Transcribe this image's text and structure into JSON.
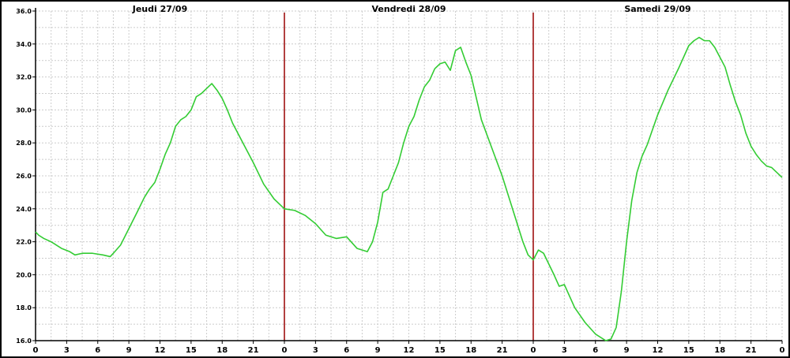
{
  "chart_data": {
    "type": "line",
    "title": "",
    "xlabel": "",
    "ylabel": "",
    "ylim": [
      16.0,
      36.0
    ],
    "yticks": [
      "16.0",
      "18.0",
      "20.0",
      "22.0",
      "24.0",
      "26.0",
      "28.0",
      "30.0",
      "32.0",
      "34.0",
      "36.0"
    ],
    "xlim_hours": [
      0,
      72
    ],
    "xticks": [
      "0",
      "3",
      "6",
      "9",
      "12",
      "15",
      "18",
      "21",
      "0",
      "3",
      "6",
      "9",
      "12",
      "15",
      "18",
      "21",
      "0",
      "3",
      "6",
      "9",
      "12",
      "15",
      "18",
      "21",
      "0"
    ],
    "days": [
      "Jeudi 27/09",
      "Vendredi 28/09",
      "Samedi 29/09"
    ],
    "day_separators_hours": [
      24,
      48
    ],
    "grid": true,
    "colors": {
      "line": "#33cc33",
      "separator": "#990000",
      "grid": "#cccccc"
    },
    "series": [
      {
        "x": [
          0,
          0.3,
          0.8,
          1.5,
          2.5,
          3.3,
          3.8,
          4.5,
          5.5,
          6.5,
          7.2,
          7.5,
          8.2,
          9.0,
          9.8,
          10.5,
          11.0,
          11.5,
          12.0,
          12.5,
          13.0,
          13.5,
          14.0,
          14.5,
          15.0,
          15.5,
          16.0,
          16.5,
          17.0,
          17.5,
          18.0,
          18.5,
          19.0,
          20.0,
          21.0,
          22.0,
          23.0,
          24.0,
          25.0,
          26.0,
          27.0,
          28.0,
          29.0,
          30.0,
          31.0,
          32.0,
          32.5,
          33.0,
          33.5,
          34.0,
          34.5,
          35.0,
          35.5,
          36.0,
          36.5,
          37.0,
          37.5,
          38.0,
          38.5,
          39.0,
          39.5,
          40.0,
          40.5,
          41.0,
          41.5,
          42.0,
          43.0,
          44.0,
          45.0,
          46.0,
          47.0,
          47.5,
          48.0,
          48.5,
          49.0,
          50.0,
          50.5,
          51.0,
          52.0,
          53.0,
          54.0,
          55.0,
          55.5,
          56.0,
          56.5,
          57.0,
          57.5,
          58.0,
          58.5,
          59.0,
          60.0,
          61.0,
          62.0,
          63.0,
          63.5,
          64.0,
          64.5,
          65.0,
          65.5,
          66.0,
          66.5,
          67.0,
          67.5,
          68.0,
          68.5,
          69.0,
          69.5,
          70.0,
          70.5,
          71.0,
          71.5,
          72.0
        ],
        "y": [
          22.6,
          22.4,
          22.2,
          22.0,
          21.6,
          21.4,
          21.2,
          21.3,
          21.3,
          21.2,
          21.1,
          21.3,
          21.8,
          22.8,
          23.8,
          24.7,
          25.2,
          25.6,
          26.4,
          27.3,
          28.0,
          29.0,
          29.4,
          29.6,
          30.0,
          30.8,
          31.0,
          31.3,
          31.6,
          31.2,
          30.7,
          30.0,
          29.2,
          28.0,
          26.8,
          25.5,
          24.6,
          24.0,
          23.9,
          23.6,
          23.1,
          22.4,
          22.2,
          22.3,
          21.6,
          21.4,
          22.0,
          23.2,
          25.0,
          25.2,
          26.0,
          26.8,
          28.0,
          29.0,
          29.6,
          30.6,
          31.4,
          31.8,
          32.5,
          32.8,
          32.9,
          32.4,
          33.6,
          33.8,
          32.9,
          32.1,
          29.4,
          27.7,
          26.0,
          24.0,
          22.0,
          21.2,
          20.9,
          21.5,
          21.3,
          20.0,
          19.3,
          19.4,
          18.0,
          17.1,
          16.4,
          16.0,
          16.1,
          16.8,
          19.0,
          22.0,
          24.5,
          26.2,
          27.2,
          27.9,
          29.7,
          31.2,
          32.5,
          33.9,
          34.2,
          34.4,
          34.2,
          34.2,
          33.8,
          33.2,
          32.6,
          31.5,
          30.5,
          29.7,
          28.6,
          27.8,
          27.3,
          26.9,
          26.6,
          26.5,
          26.2,
          25.9
        ]
      }
    ]
  }
}
